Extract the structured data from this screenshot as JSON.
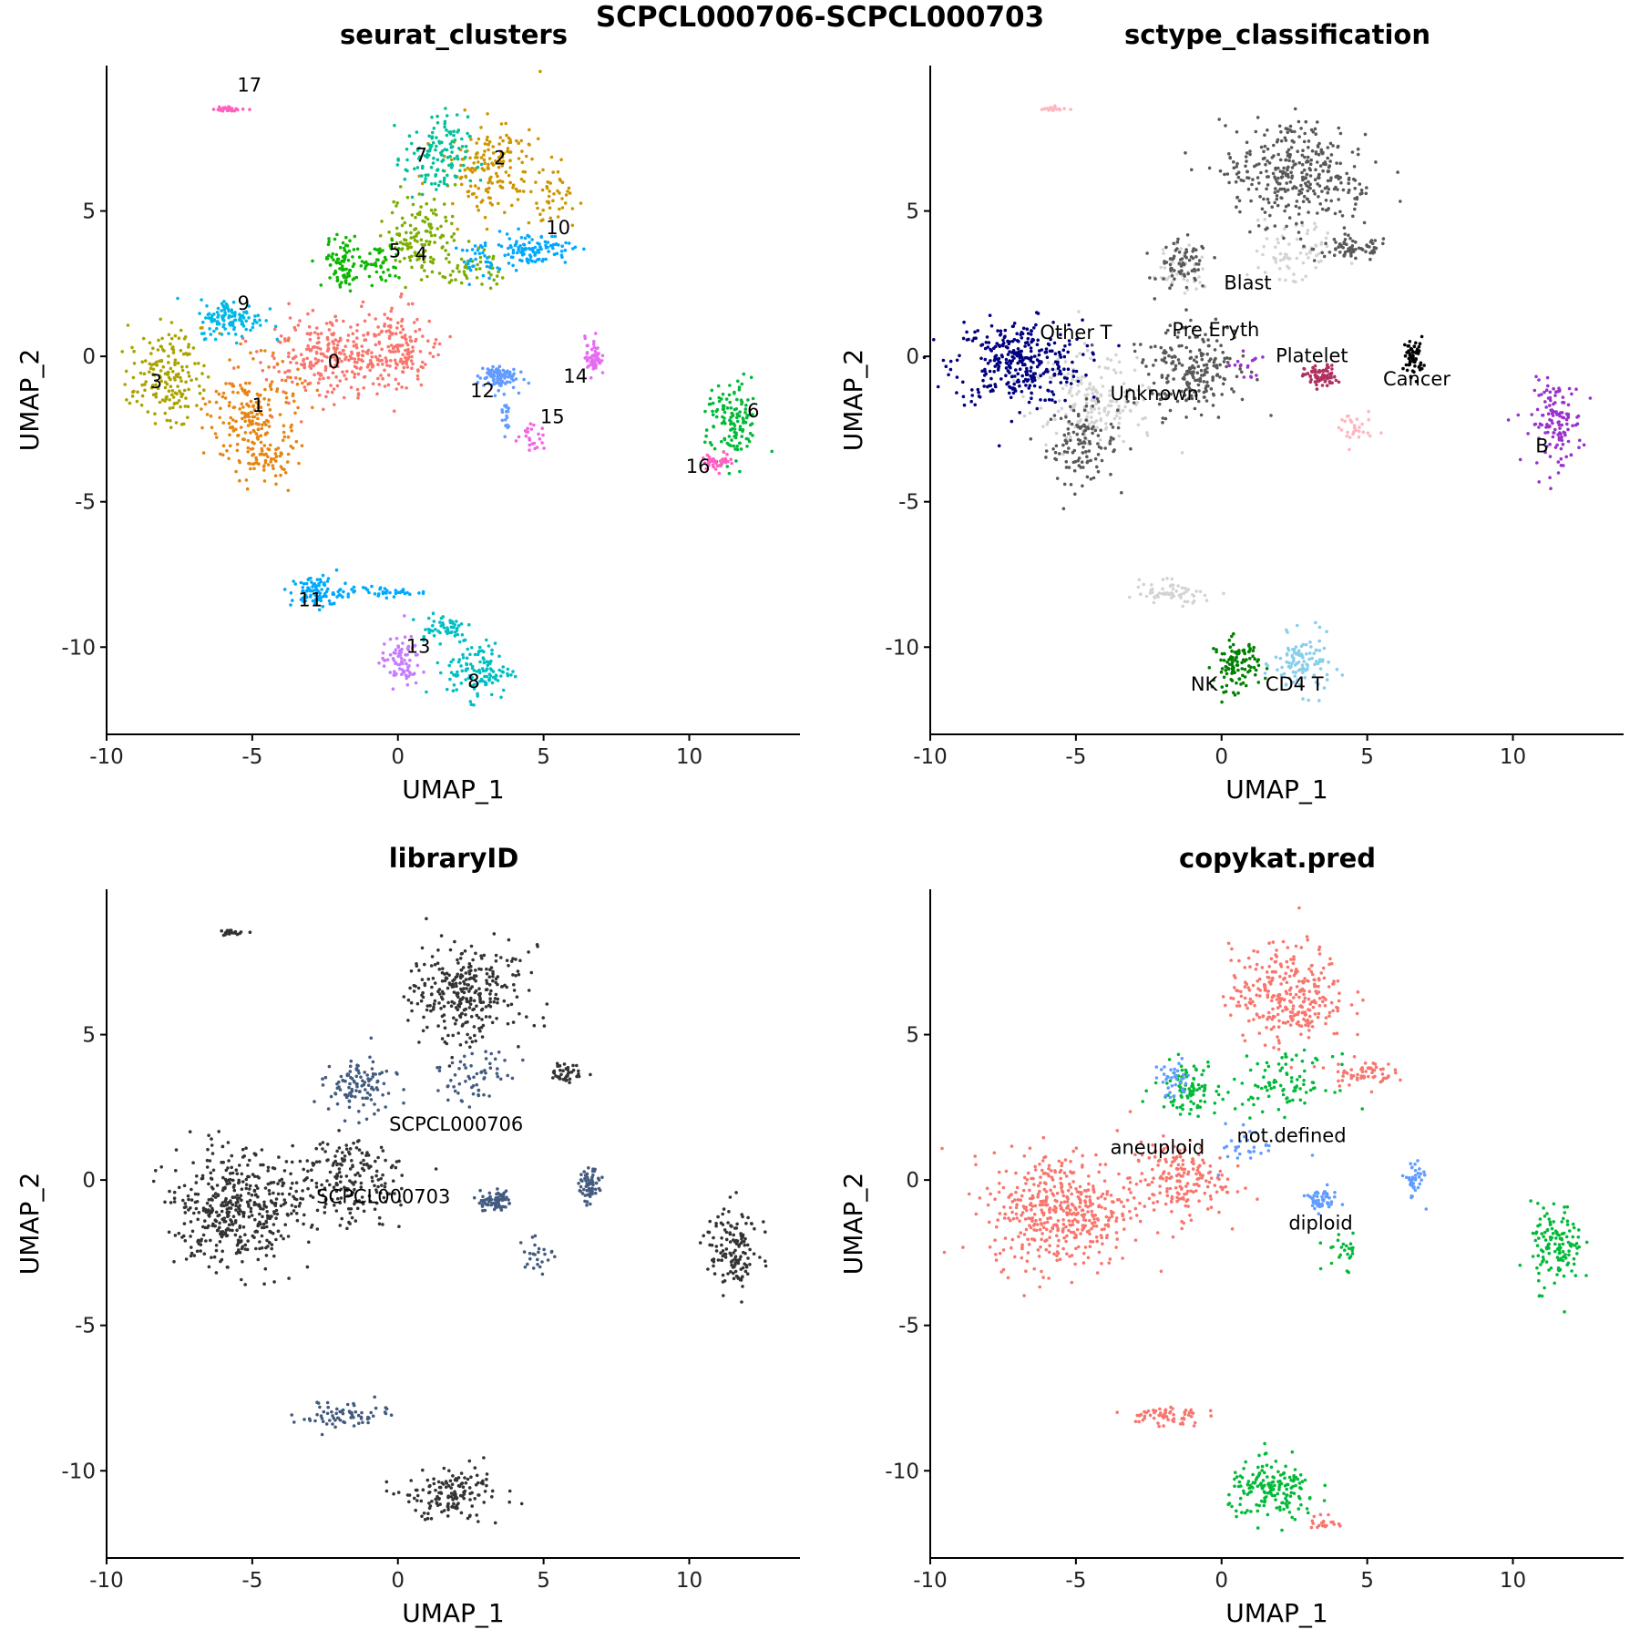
{
  "title": "SCPCL000706-SCPCL000703",
  "chart_data": [
    {
      "type": "scatter",
      "title": "seurat_clusters",
      "xlabel": "UMAP_1",
      "ylabel": "UMAP_2",
      "xlim": [
        -10,
        13.8
      ],
      "ylim": [
        -13,
        10
      ],
      "xticks": [
        -10,
        -5,
        0,
        5,
        10
      ],
      "yticks": [
        -10,
        -5,
        0,
        5
      ],
      "grid": false,
      "legend": "none",
      "groups": [
        {
          "name": "0",
          "color": "#F8766D",
          "blobs": [
            [
              -2.5,
              0.0,
              1.8,
              1.4,
              230
            ],
            [
              0.0,
              0.3,
              1.3,
              1.2,
              120
            ],
            [
              -0.5,
              -0.5,
              1.1,
              1.0,
              60
            ]
          ]
        },
        {
          "name": "1",
          "color": "#E68613",
          "blobs": [
            [
              -4.9,
              -2.0,
              1.4,
              1.7,
              200
            ],
            [
              -4.6,
              -3.5,
              0.9,
              0.7,
              60
            ]
          ]
        },
        {
          "name": "2",
          "color": "#CD9600",
          "blobs": [
            [
              3.2,
              6.5,
              1.6,
              1.4,
              170
            ],
            [
              5.3,
              5.5,
              0.8,
              0.8,
              40
            ]
          ]
        },
        {
          "name": "3",
          "color": "#ABA300",
          "blobs": [
            [
              -8.0,
              -0.7,
              1.1,
              1.4,
              170
            ]
          ]
        },
        {
          "name": "4",
          "color": "#7CAE00",
          "blobs": [
            [
              0.8,
              4.2,
              1.1,
              1.3,
              130
            ],
            [
              2.5,
              3.0,
              1.0,
              0.7,
              50
            ]
          ]
        },
        {
          "name": "5",
          "color": "#0CB702",
          "blobs": [
            [
              -1.8,
              3.2,
              0.7,
              0.8,
              90
            ],
            [
              -0.6,
              3.2,
              0.6,
              0.7,
              40
            ]
          ]
        },
        {
          "name": "6",
          "color": "#00BA38",
          "blobs": [
            [
              11.5,
              -2.3,
              0.8,
              1.3,
              130
            ]
          ]
        },
        {
          "name": "7",
          "color": "#00C19A",
          "blobs": [
            [
              1.3,
              6.8,
              1.0,
              1.3,
              130
            ]
          ]
        },
        {
          "name": "8",
          "color": "#00BFC4",
          "blobs": [
            [
              2.8,
              -10.8,
              1.0,
              0.9,
              120
            ],
            [
              1.5,
              -9.3,
              1.0,
              0.5,
              50
            ]
          ]
        },
        {
          "name": "9",
          "color": "#00B8E7",
          "blobs": [
            [
              -5.7,
              1.3,
              1.0,
              0.6,
              120
            ]
          ]
        },
        {
          "name": "10",
          "color": "#00A9FF",
          "blobs": [
            [
              4.5,
              3.7,
              1.3,
              0.5,
              110
            ],
            [
              2.8,
              3.3,
              0.6,
              0.5,
              30
            ]
          ]
        },
        {
          "name": "11",
          "color": "#00A9FF",
          "blobs": [
            [
              -2.8,
              -8.1,
              0.8,
              0.5,
              90
            ],
            [
              -0.5,
              -8.1,
              1.2,
              0.15,
              40
            ]
          ]
        },
        {
          "name": "12",
          "color": "#619CFF",
          "blobs": [
            [
              3.4,
              -0.7,
              0.6,
              0.4,
              90
            ],
            [
              3.7,
              -2.0,
              0.15,
              0.6,
              20
            ]
          ]
        },
        {
          "name": "13",
          "color": "#C77CFF",
          "blobs": [
            [
              0.1,
              -10.5,
              0.6,
              0.8,
              80
            ]
          ]
        },
        {
          "name": "14",
          "color": "#E76BF3",
          "blobs": [
            [
              6.7,
              0.0,
              0.25,
              0.6,
              60
            ]
          ]
        },
        {
          "name": "15",
          "color": "#F564E3",
          "blobs": [
            [
              4.6,
              -2.8,
              0.45,
              0.4,
              25
            ]
          ]
        },
        {
          "name": "16",
          "color": "#FF61C3",
          "blobs": [
            [
              11.0,
              -3.6,
              0.5,
              0.25,
              40
            ]
          ]
        },
        {
          "name": "17",
          "color": "#FF62BC",
          "blobs": [
            [
              -5.8,
              8.5,
              0.5,
              0.08,
              25
            ]
          ]
        }
      ],
      "labels": [
        {
          "text": "0",
          "x": -2.2,
          "y": -0.4
        },
        {
          "text": "1",
          "x": -4.8,
          "y": -1.9
        },
        {
          "text": "2",
          "x": 3.5,
          "y": 6.6
        },
        {
          "text": "3",
          "x": -8.3,
          "y": -1.1
        },
        {
          "text": "4",
          "x": 0.8,
          "y": 3.3
        },
        {
          "text": "5",
          "x": -0.1,
          "y": 3.4
        },
        {
          "text": "6",
          "x": 12.2,
          "y": -2.1
        },
        {
          "text": "7",
          "x": 0.8,
          "y": 6.7
        },
        {
          "text": "8",
          "x": 2.6,
          "y": -11.4
        },
        {
          "text": "9",
          "x": -5.3,
          "y": 1.6
        },
        {
          "text": "10",
          "x": 5.5,
          "y": 4.2
        },
        {
          "text": "11",
          "x": -3.0,
          "y": -8.6
        },
        {
          "text": "12",
          "x": 2.9,
          "y": -1.4
        },
        {
          "text": "13",
          "x": 0.7,
          "y": -10.2
        },
        {
          "text": "14",
          "x": 6.1,
          "y": -0.9
        },
        {
          "text": "15",
          "x": 5.3,
          "y": -2.3
        },
        {
          "text": "16",
          "x": 10.3,
          "y": -4.0
        },
        {
          "text": "17",
          "x": -5.1,
          "y": 9.1
        }
      ]
    },
    {
      "type": "scatter",
      "title": "sctype_classification",
      "xlabel": "UMAP_1",
      "ylabel": "UMAP_2",
      "xlim": [
        -10,
        13.8
      ],
      "ylim": [
        -13,
        10
      ],
      "xticks": [
        -10,
        -5,
        0,
        5,
        10
      ],
      "yticks": [
        -10,
        -5,
        0,
        5
      ],
      "grid": false,
      "legend": "none",
      "groups": [
        {
          "name": "Unknown",
          "color": "#d3d3d3",
          "blobs": [
            [
              -4.5,
              -1.5,
              2.0,
              1.6,
              200
            ],
            [
              2.5,
              3.5,
              1.5,
              1.0,
              70
            ],
            [
              -1.8,
              -8.1,
              1.3,
              0.35,
              60
            ],
            [
              -1.5,
              3.0,
              0.8,
              0.7,
              40
            ]
          ]
        },
        {
          "name": "Blast",
          "color": "#595959",
          "blobs": [
            [
              2.5,
              6.3,
              2.0,
              1.6,
              340
            ],
            [
              -1.0,
              -0.5,
              1.8,
              1.4,
              220
            ],
            [
              -4.8,
              -3.0,
              1.1,
              1.2,
              120
            ],
            [
              4.5,
              3.7,
              1.2,
              0.4,
              70
            ],
            [
              -1.3,
              3.1,
              0.8,
              0.8,
              70
            ]
          ]
        },
        {
          "name": "Other T",
          "color": "#000080",
          "blobs": [
            [
              -7.0,
              -0.2,
              2.0,
              1.3,
              330
            ]
          ]
        },
        {
          "name": "Pre Eryth",
          "color": "#9932CC",
          "blobs": [
            [
              0.8,
              -0.3,
              0.5,
              0.5,
              15
            ]
          ]
        },
        {
          "name": "Platelet",
          "color": "#b03060",
          "blobs": [
            [
              3.4,
              -0.7,
              0.5,
              0.35,
              80
            ]
          ]
        },
        {
          "name": "Cancer",
          "color": "#000000",
          "blobs": [
            [
              6.6,
              0.0,
              0.3,
              0.6,
              60
            ]
          ]
        },
        {
          "name": "B",
          "color": "#9932CC",
          "blobs": [
            [
              11.5,
              -2.3,
              0.8,
              1.3,
              130
            ]
          ]
        },
        {
          "name": "NK",
          "color": "#008000",
          "blobs": [
            [
              0.5,
              -10.6,
              0.7,
              0.8,
              110
            ]
          ]
        },
        {
          "name": "CD4 T",
          "color": "#87ceeb",
          "blobs": [
            [
              2.8,
              -10.6,
              0.9,
              0.9,
              110
            ]
          ]
        },
        {
          "name": "",
          "color": "#ffb6c1",
          "blobs": [
            [
              4.5,
              -2.5,
              0.6,
              0.6,
              30
            ],
            [
              -5.8,
              8.5,
              0.5,
              0.08,
              20
            ]
          ]
        }
      ],
      "labels": [
        {
          "text": "Blast",
          "x": 0.9,
          "y": 2.3
        },
        {
          "text": "Pre Eryth",
          "x": -0.2,
          "y": 0.7
        },
        {
          "text": "Other T",
          "x": -5.0,
          "y": 0.6
        },
        {
          "text": "Platelet",
          "x": 3.1,
          "y": -0.2
        },
        {
          "text": "Cancer",
          "x": 6.7,
          "y": -1.0
        },
        {
          "text": "Unknown",
          "x": -2.3,
          "y": -1.5
        },
        {
          "text": "B",
          "x": 11.0,
          "y": -3.3
        },
        {
          "text": "NK",
          "x": -0.6,
          "y": -11.5
        },
        {
          "text": "CD4 T",
          "x": 2.5,
          "y": -11.5
        }
      ]
    },
    {
      "type": "scatter",
      "title": "libraryID",
      "xlabel": "UMAP_1",
      "ylabel": "UMAP_2",
      "xlim": [
        -10,
        13.8
      ],
      "ylim": [
        -13,
        10
      ],
      "xticks": [
        -10,
        -5,
        0,
        5,
        10
      ],
      "yticks": [
        -10,
        -5,
        0,
        5
      ],
      "grid": false,
      "legend": "none",
      "groups": [
        {
          "name": "SCPCL000703",
          "color": "#333333",
          "blobs": [
            [
              -5.5,
              -1.0,
              2.2,
              1.8,
              460
            ],
            [
              -1.5,
              0.0,
              1.5,
              1.2,
              180
            ],
            [
              2.3,
              6.4,
              1.8,
              1.5,
              300
            ],
            [
              11.5,
              -2.3,
              0.8,
              1.3,
              130
            ],
            [
              1.8,
              -10.8,
              1.5,
              0.9,
              150
            ],
            [
              5.8,
              3.7,
              0.6,
              0.3,
              40
            ],
            [
              -5.8,
              8.5,
              0.5,
              0.08,
              20
            ]
          ]
        },
        {
          "name": "SCPCL000706",
          "color": "#425b7f",
          "blobs": [
            [
              -1.4,
              3.2,
              1.0,
              0.8,
              110
            ],
            [
              3.4,
              -0.7,
              0.5,
              0.35,
              70
            ],
            [
              6.6,
              -0.2,
              0.3,
              0.6,
              60
            ],
            [
              -1.8,
              -8.1,
              1.3,
              0.35,
              70
            ],
            [
              2.5,
              3.5,
              1.4,
              0.9,
              60
            ],
            [
              4.6,
              -2.5,
              0.6,
              0.6,
              25
            ]
          ]
        }
      ],
      "labels": [
        {
          "text": "SCPCL000706",
          "x": 2.0,
          "y": 1.7
        },
        {
          "text": "SCPCL000703",
          "x": -0.5,
          "y": -0.8
        }
      ]
    },
    {
      "type": "scatter",
      "title": "copykat.pred",
      "xlabel": "UMAP_1",
      "ylabel": "UMAP_2",
      "xlim": [
        -10,
        13.8
      ],
      "ylim": [
        -13,
        10
      ],
      "xticks": [
        -10,
        -5,
        0,
        5,
        10
      ],
      "yticks": [
        -10,
        -5,
        0,
        5
      ],
      "grid": false,
      "legend": "none",
      "groups": [
        {
          "name": "aneuploid",
          "color": "#F8766D",
          "blobs": [
            [
              -5.5,
              -1.0,
              2.2,
              1.8,
              460
            ],
            [
              -1.5,
              0.0,
              1.5,
              1.2,
              180
            ],
            [
              2.3,
              6.4,
              1.8,
              1.5,
              300
            ],
            [
              4.8,
              3.7,
              1.0,
              0.4,
              60
            ],
            [
              -2.0,
              -8.1,
              1.2,
              0.35,
              60
            ],
            [
              3.5,
              -11.8,
              0.4,
              0.3,
              20
            ]
          ]
        },
        {
          "name": "diploid",
          "color": "#00BA38",
          "blobs": [
            [
              11.5,
              -2.3,
              0.8,
              1.3,
              130
            ],
            [
              1.8,
              -10.7,
              1.4,
              0.9,
              170
            ],
            [
              -1.2,
              3.2,
              1.0,
              0.8,
              90
            ],
            [
              2.2,
              3.3,
              1.5,
              0.9,
              90
            ],
            [
              4.2,
              -2.4,
              0.6,
              0.6,
              25
            ]
          ]
        },
        {
          "name": "not.defined",
          "color": "#619CFF",
          "blobs": [
            [
              3.4,
              -0.7,
              0.5,
              0.35,
              50
            ],
            [
              6.6,
              0.0,
              0.3,
              0.6,
              40
            ],
            [
              -1.7,
              3.4,
              0.6,
              0.6,
              35
            ],
            [
              1.0,
              1.2,
              0.9,
              0.7,
              30
            ]
          ]
        }
      ],
      "labels": [
        {
          "text": "aneuploid",
          "x": -2.2,
          "y": 0.9
        },
        {
          "text": "not.defined",
          "x": 2.4,
          "y": 1.3
        },
        {
          "text": "diploid",
          "x": 3.4,
          "y": -1.7
        }
      ]
    }
  ]
}
